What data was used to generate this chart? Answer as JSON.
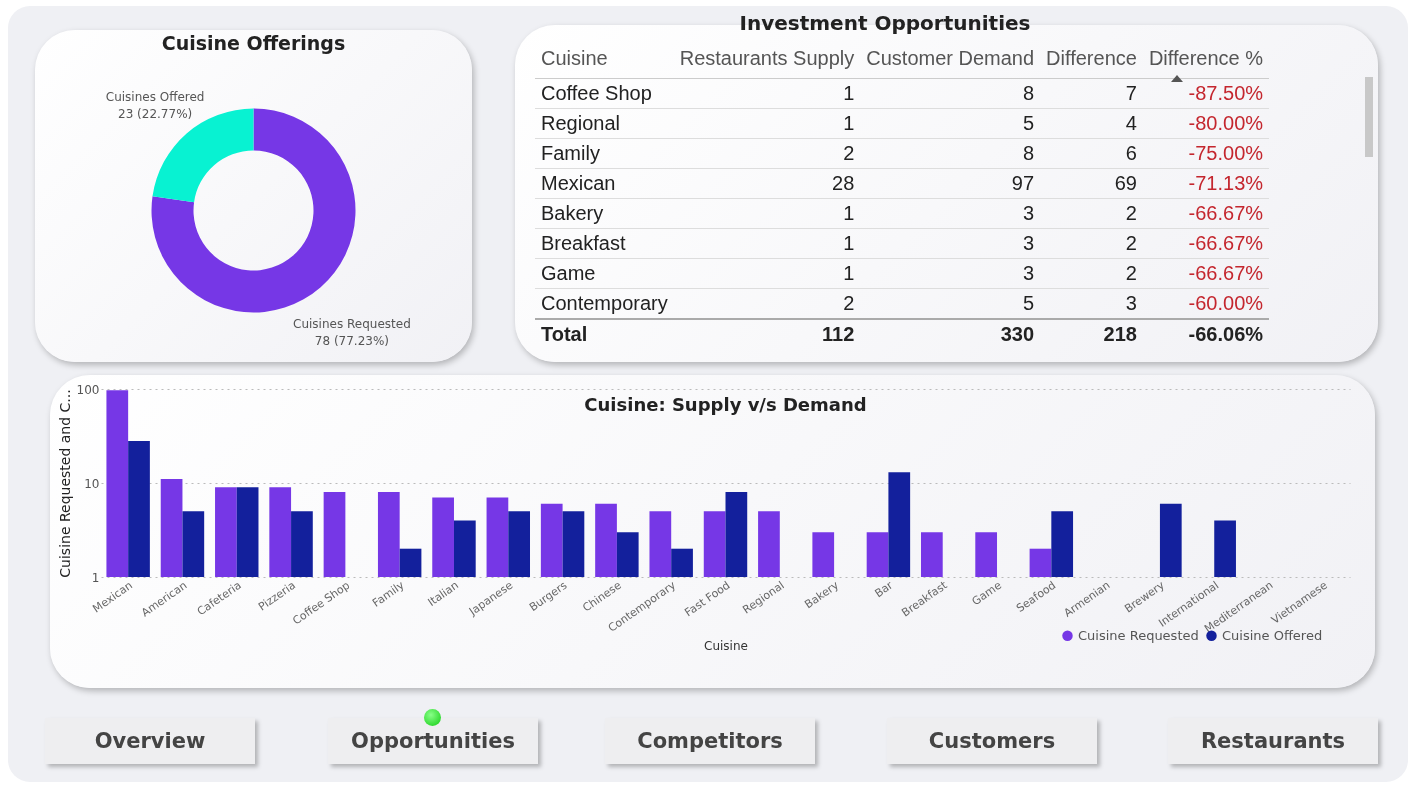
{
  "chart_data": [
    {
      "type": "donut",
      "title": "Cuisine Offerings",
      "categories": [
        "Cuisines Requested",
        "Cuisines Offered"
      ],
      "values": [
        78,
        23
      ],
      "colors": [
        "#7637e6",
        "#08f2d2"
      ],
      "value_labels": [
        "78 (77.23%)",
        "23 (22.77%)"
      ]
    },
    {
      "type": "other",
      "title": "Investment Opportunities",
      "categories": [
        "Cuisine",
        "Restaurants Supply",
        "Customer Demand",
        "Difference",
        "Difference %"
      ],
      "y_categories": [
        "Coffee Shop",
        "Regional",
        "Family",
        "Mexican",
        "Bakery",
        "Breakfast",
        "Game",
        "Contemporary",
        "Total"
      ],
      "cell_labels": [
        [
          "1",
          "8",
          "7",
          "-87.50%"
        ],
        [
          "1",
          "5",
          "4",
          "-80.00%"
        ],
        [
          "2",
          "8",
          "6",
          "-75.00%"
        ],
        [
          "28",
          "97",
          "69",
          "-71.13%"
        ],
        [
          "1",
          "3",
          "2",
          "-66.67%"
        ],
        [
          "1",
          "3",
          "2",
          "-66.67%"
        ],
        [
          "1",
          "3",
          "2",
          "-66.67%"
        ],
        [
          "2",
          "5",
          "3",
          "-60.00%"
        ],
        [
          "112",
          "330",
          "218",
          "-66.06%"
        ]
      ]
    },
    {
      "type": "bar",
      "title": "Cuisine: Supply v/s Demand",
      "xlabel": "Cuisine",
      "ylabel": "Cuisine Requested and C...",
      "categories": [
        "Mexican",
        "American",
        "Cafeteria",
        "Pizzeria",
        "Coffee Shop",
        "Family",
        "Italian",
        "Japanese",
        "Burgers",
        "Chinese",
        "Contemporary",
        "Fast Food",
        "Regional",
        "Bakery",
        "Bar",
        "Breakfast",
        "Game",
        "Seafood",
        "Armenian",
        "Brewery",
        "International",
        "Mediterranean",
        "Vietnamese"
      ],
      "series": [
        {
          "name": "Cuisine Requested",
          "color": "#7637e6",
          "values": [
            97,
            11,
            9,
            9,
            8,
            8,
            7,
            7,
            6,
            6,
            5,
            5,
            5,
            3,
            3,
            3,
            3,
            2,
            null,
            null,
            null,
            null,
            null
          ]
        },
        {
          "name": "Cuisine Offered",
          "color": "#13209c",
          "values": [
            28,
            5,
            9,
            5,
            1,
            2,
            4,
            5,
            5,
            3,
            2,
            8,
            1,
            1,
            13,
            1,
            1,
            5,
            null,
            6,
            4,
            null,
            null
          ]
        }
      ],
      "log": "y",
      "ylim": [
        1,
        100
      ],
      "yticks": [
        1,
        10,
        100
      ],
      "grid": "y",
      "legend": "bottom right"
    },
    {
      "type": "other",
      "annotations": [
        "Overview",
        "Opportunities",
        "Competitors",
        "Customers",
        "Restaurants"
      ]
    }
  ]
}
